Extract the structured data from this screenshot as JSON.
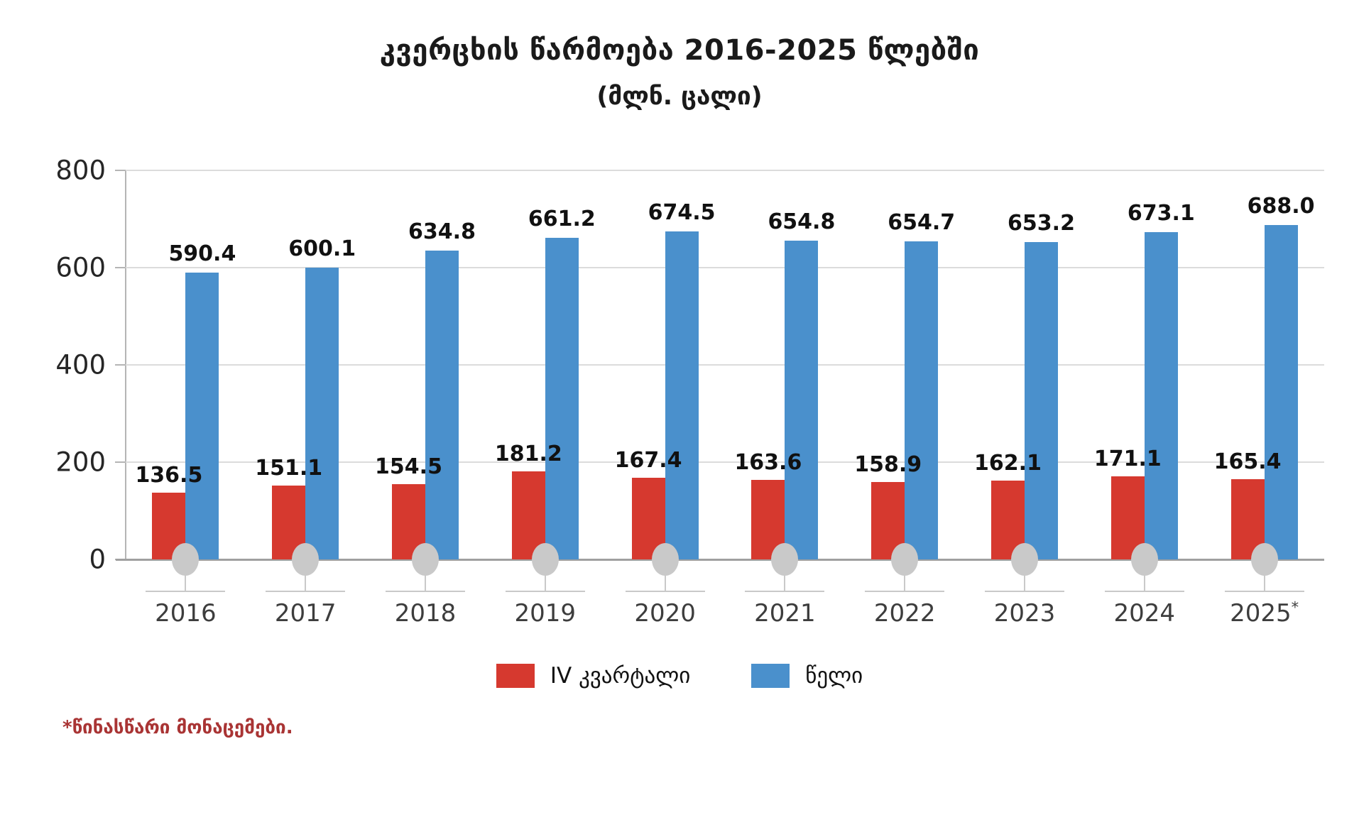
{
  "header": {
    "title": "კვერცხის წარმოება 2016-2025 წლებში",
    "subtitle": "(მლნ. ცალი)"
  },
  "chart_data": {
    "type": "bar",
    "title": "კვერცხის წარმოება 2016-2025 წლებში",
    "subtitle": "(მლნ. ცალი)",
    "categories": [
      "2016",
      "2017",
      "2018",
      "2019",
      "2020",
      "2021",
      "2022",
      "2023",
      "2024",
      "2025*"
    ],
    "series": [
      {
        "name": "IV კვარტალი",
        "color": "#d6392f",
        "values": [
          136.5,
          151.1,
          154.5,
          181.2,
          167.4,
          163.6,
          158.9,
          162.1,
          171.1,
          165.4
        ]
      },
      {
        "name": "წელი",
        "color": "#4a90cc",
        "values": [
          590.4,
          600.1,
          634.8,
          661.2,
          674.5,
          654.8,
          654.7,
          653.2,
          673.1,
          688.0
        ]
      }
    ],
    "xlabel": "",
    "ylabel": "",
    "ylim": [
      0,
      800
    ],
    "yticks": [
      0,
      200,
      400,
      600,
      800
    ],
    "grid": true,
    "legend_position": "bottom",
    "value_labels": {
      "IV კვარტალი": [
        "136.5",
        "151.1",
        "154.5",
        "181.2",
        "167.4",
        "163.6",
        "158.9",
        "162.1",
        "171.1",
        "165.4"
      ],
      "წელი": [
        "590.4",
        "600.1",
        "634.8",
        "661.2",
        "674.5",
        "654.8",
        "654.7",
        "653.2",
        "673.1",
        "688.0"
      ]
    }
  },
  "footnote": "*წინასწარი მონაცემები.",
  "colors": {
    "quarter_bar": "#d6392f",
    "year_bar": "#4a90cc",
    "marker_gray": "#c9c9c9",
    "baseline_gray": "#a0a0a0",
    "gridline_gray": "#dcdcdc",
    "footnote_red": "#a93434",
    "year_label_gray": "#3d3d3d"
  }
}
